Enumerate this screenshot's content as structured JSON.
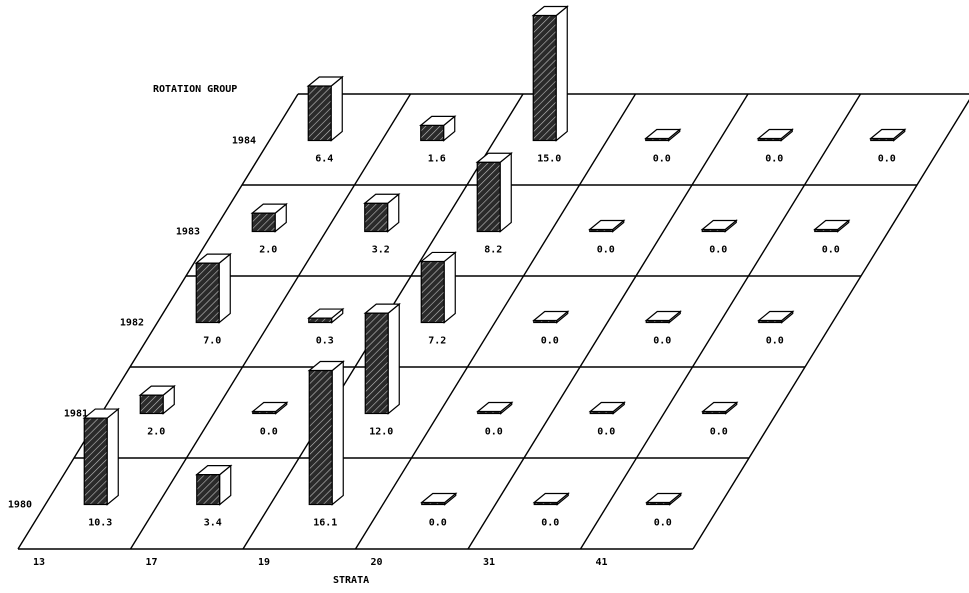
{
  "chart_data": {
    "type": "bar",
    "projection": "3d-oblique",
    "title": "",
    "xlabel": "STRATA",
    "ylabel": "ROTATION GROUP",
    "categories": [
      "13",
      "17",
      "19",
      "20",
      "31",
      "41"
    ],
    "rows": [
      "1980",
      "1981",
      "1982",
      "1983",
      "1984"
    ],
    "series": [
      {
        "name": "1980",
        "values": [
          10.3,
          3.4,
          16.1,
          0.0,
          0.0,
          0.0
        ],
        "labels": [
          "10.3",
          "3.4",
          "16.1",
          "0.0",
          "0.0",
          "0.0"
        ]
      },
      {
        "name": "1981",
        "values": [
          2.0,
          0.0,
          12.0,
          0.0,
          0.0,
          0.0
        ],
        "labels": [
          "2.0",
          "0.0",
          "12.0",
          "0.0",
          "0.0",
          "0.0"
        ]
      },
      {
        "name": "1982",
        "values": [
          7.0,
          0.3,
          7.2,
          0.0,
          0.0,
          0.0
        ],
        "labels": [
          "7.0",
          "0.3",
          "7.2",
          "0.0",
          "0.0",
          "0.0"
        ]
      },
      {
        "name": "1983",
        "values": [
          2.0,
          3.2,
          8.2,
          0.0,
          0.0,
          0.0
        ],
        "labels": [
          "2.0",
          "3.2",
          "8.2",
          "0.0",
          "0.0",
          "0.0"
        ]
      },
      {
        "name": "1984",
        "values": [
          6.4,
          1.6,
          15.0,
          0.0,
          0.0,
          0.0
        ],
        "labels": [
          "6.4",
          "1.6",
          "15.0",
          "0.0",
          "0.0",
          "0.0"
        ]
      }
    ],
    "colors": {
      "bar_face": "#222222",
      "bar_top": "#ffffff",
      "grid": "#000000"
    }
  }
}
